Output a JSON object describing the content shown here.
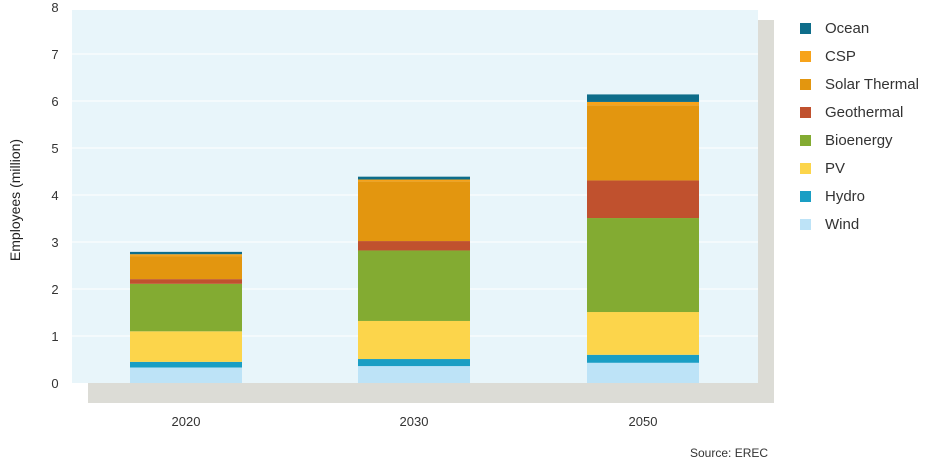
{
  "chart_data": {
    "type": "bar",
    "stacked": true,
    "title": "",
    "xlabel": "",
    "ylabel": "Employees (million)",
    "ylim": [
      0,
      8
    ],
    "yticks": [
      "0",
      "1",
      "2",
      "3",
      "4",
      "5",
      "6",
      "7",
      "8"
    ],
    "categories": [
      "2020",
      "2030",
      "2050"
    ],
    "legend_position": "right",
    "grid": true,
    "series": [
      {
        "name": "Wind",
        "color": "#bde3f7",
        "values": [
          0.33,
          0.36,
          0.43
        ]
      },
      {
        "name": "Hydro",
        "color": "#1a9ec4",
        "values": [
          0.12,
          0.15,
          0.17
        ]
      },
      {
        "name": "PV",
        "color": "#fcd54b",
        "values": [
          0.65,
          0.81,
          0.91
        ]
      },
      {
        "name": "Bioenergy",
        "color": "#83ab32",
        "values": [
          1.01,
          1.5,
          2.0
        ]
      },
      {
        "name": "Geothermal",
        "color": "#c0512e",
        "values": [
          0.1,
          0.2,
          0.8
        ]
      },
      {
        "name": "Solar Thermal",
        "color": "#e3960f",
        "values": [
          0.49,
          1.27,
          1.6
        ]
      },
      {
        "name": "CSP",
        "color": "#f7a31a",
        "values": [
          0.04,
          0.04,
          0.07
        ]
      },
      {
        "name": "Ocean",
        "color": "#0e6d8a",
        "values": [
          0.05,
          0.06,
          0.16
        ]
      }
    ]
  },
  "legend": {
    "items": [
      {
        "label": "Ocean",
        "color": "#0e6d8a"
      },
      {
        "label": "CSP",
        "color": "#f7a31a"
      },
      {
        "label": "Solar Thermal",
        "color": "#e3960f"
      },
      {
        "label": "Geothermal",
        "color": "#c0512e"
      },
      {
        "label": "Bioenergy",
        "color": "#83ab32"
      },
      {
        "label": "PV",
        "color": "#fcd54b"
      },
      {
        "label": "Hydro",
        "color": "#1a9ec4"
      },
      {
        "label": "Wind",
        "color": "#bde3f7"
      }
    ]
  },
  "source": "Source: EREC"
}
